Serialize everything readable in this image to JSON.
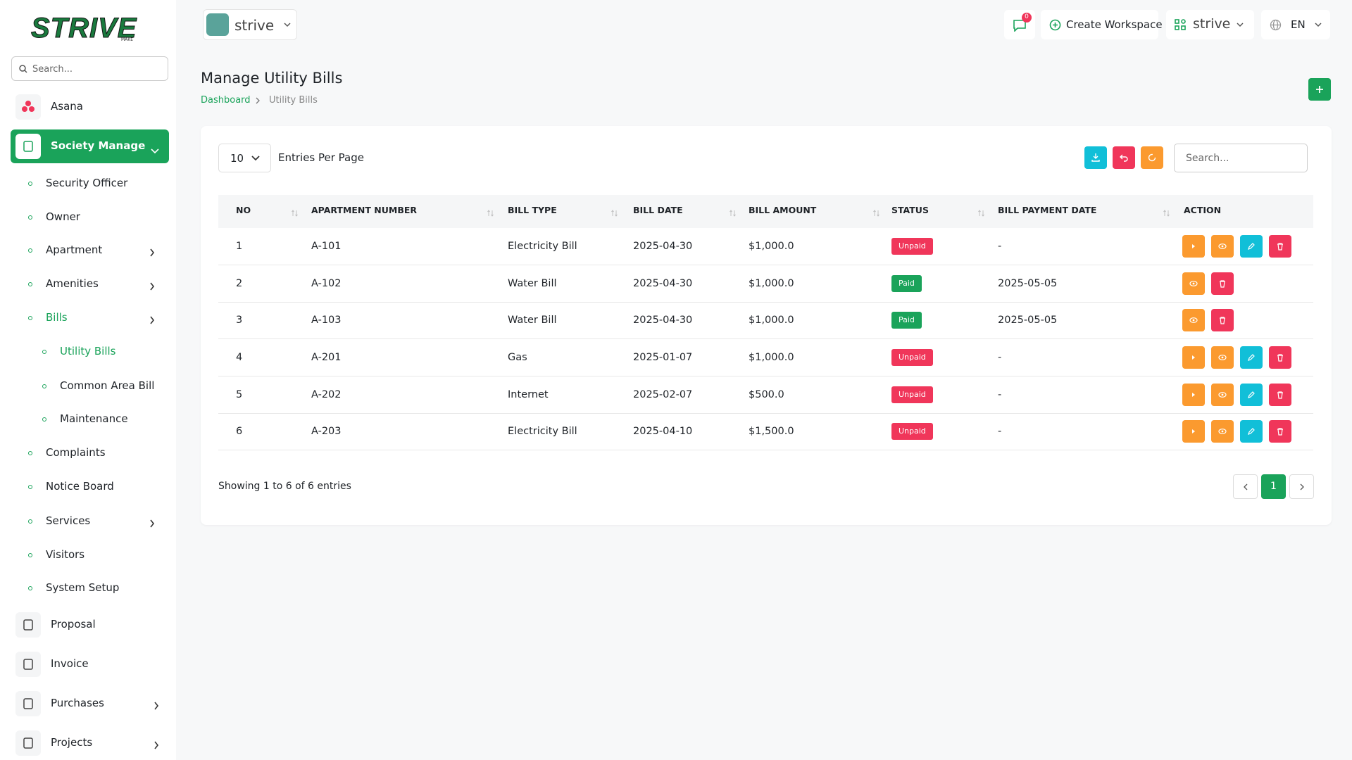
{
  "logo": {
    "text": "STRIVE",
    "sub": "MAKE"
  },
  "sidebar": {
    "search_placeholder": "Search...",
    "menu": [
      "Asana",
      "Society Manage",
      "Security Officer",
      "Owner",
      "Apartment",
      "Amenities",
      "Bills",
      "Utility Bills",
      "Common Area Bill",
      "Maintenance",
      "Complaints",
      "Notice Board",
      "Services",
      "Visitors",
      "System Setup",
      "Proposal",
      "Invoice",
      "Purchases",
      "Projects"
    ]
  },
  "header": {
    "workspace": "strive",
    "notifications": "0",
    "create_workspace": "Create Workspace",
    "current_workspace": "strive",
    "language": "EN"
  },
  "page": {
    "title": "Manage Utility Bills",
    "breadcrumb": [
      "Dashboard",
      "Utility Bills"
    ]
  },
  "table": {
    "entries": "10",
    "entries_label": "Entries Per Page",
    "search_placeholder": "Search...",
    "columns": [
      "NO",
      "APARTMENT NUMBER",
      "BILL TYPE",
      "BILL DATE",
      "BILL AMOUNT",
      "STATUS",
      "BILL PAYMENT DATE",
      "ACTION"
    ],
    "rows": [
      [
        "1",
        "A-101",
        "Electricity Bill",
        "2025-04-30",
        "$1,000.0",
        "Unpaid",
        "-"
      ],
      [
        "2",
        "A-102",
        "Water Bill",
        "2025-04-30",
        "$1,000.0",
        "Paid",
        "2025-05-05"
      ],
      [
        "3",
        "A-103",
        "Water Bill",
        "2025-04-30",
        "$1,000.0",
        "Paid",
        "2025-05-05"
      ],
      [
        "4",
        "A-201",
        "Gas",
        "2025-01-07",
        "$1,000.0",
        "Unpaid",
        "-"
      ],
      [
        "5",
        "A-202",
        "Internet",
        "2025-02-07",
        "$500.0",
        "Unpaid",
        "-"
      ],
      [
        "6",
        "A-203",
        "Electricity Bill",
        "2025-04-10",
        "$1,500.0",
        "Unpaid",
        "-"
      ]
    ],
    "summary": "Showing 1 to 6 of 6 entries",
    "page": "1"
  }
}
